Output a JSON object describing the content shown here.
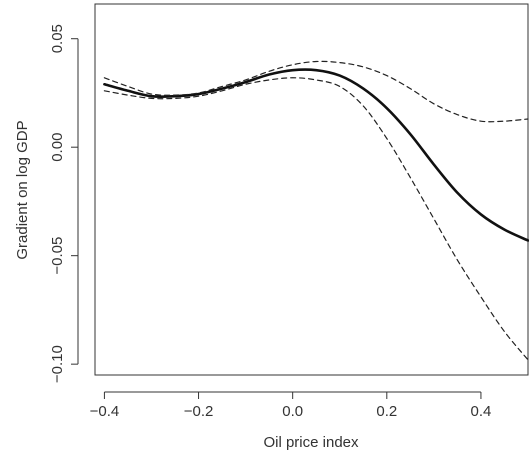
{
  "chart_data": {
    "type": "line",
    "title": "",
    "xlabel": "Oil price index",
    "ylabel": "Gradient on log GDP",
    "xlim": [
      -0.42,
      0.5
    ],
    "ylim": [
      -0.105,
      0.066
    ],
    "x_ticks": [
      -0.4,
      -0.2,
      0.0,
      0.2,
      0.4
    ],
    "x_tick_labels": [
      "−0.4",
      "−0.2",
      "0.0",
      "0.2",
      "0.4"
    ],
    "y_ticks": [
      -0.1,
      -0.05,
      0.0,
      0.05
    ],
    "y_tick_labels": [
      "−0.10",
      "−0.05",
      "0.00",
      "0.05"
    ],
    "grid": false,
    "legend": "none",
    "colors": {
      "line": "#111111",
      "band": "#222222",
      "axis": "#333333"
    },
    "series": [
      {
        "style": "solid",
        "x": [
          -0.4,
          -0.35,
          -0.3,
          -0.25,
          -0.2,
          -0.15,
          -0.1,
          -0.05,
          0.0,
          0.05,
          0.1,
          0.15,
          0.2,
          0.25,
          0.3,
          0.35,
          0.4,
          0.45,
          0.5
        ],
        "y": [
          0.029,
          0.026,
          0.0235,
          0.0235,
          0.0245,
          0.027,
          0.03,
          0.0335,
          0.0355,
          0.0355,
          0.033,
          0.027,
          0.018,
          0.006,
          -0.008,
          -0.021,
          -0.031,
          -0.038,
          -0.043
        ]
      },
      {
        "style": "dashed",
        "x": [
          -0.4,
          -0.35,
          -0.3,
          -0.25,
          -0.2,
          -0.15,
          -0.1,
          -0.05,
          0.0,
          0.05,
          0.1,
          0.15,
          0.2,
          0.25,
          0.3,
          0.35,
          0.4,
          0.45,
          0.5
        ],
        "y": [
          0.032,
          0.028,
          0.0245,
          0.024,
          0.025,
          0.028,
          0.031,
          0.035,
          0.038,
          0.0395,
          0.039,
          0.037,
          0.033,
          0.027,
          0.02,
          0.015,
          0.012,
          0.012,
          0.013
        ]
      },
      {
        "style": "dashed",
        "x": [
          -0.4,
          -0.35,
          -0.3,
          -0.25,
          -0.2,
          -0.15,
          -0.1,
          -0.05,
          0.0,
          0.05,
          0.1,
          0.15,
          0.2,
          0.25,
          0.3,
          0.35,
          0.4,
          0.45,
          0.5
        ],
        "y": [
          0.026,
          0.024,
          0.0225,
          0.0225,
          0.0235,
          0.026,
          0.029,
          0.031,
          0.032,
          0.031,
          0.028,
          0.019,
          0.004,
          -0.014,
          -0.033,
          -0.052,
          -0.069,
          -0.085,
          -0.098
        ]
      }
    ]
  }
}
